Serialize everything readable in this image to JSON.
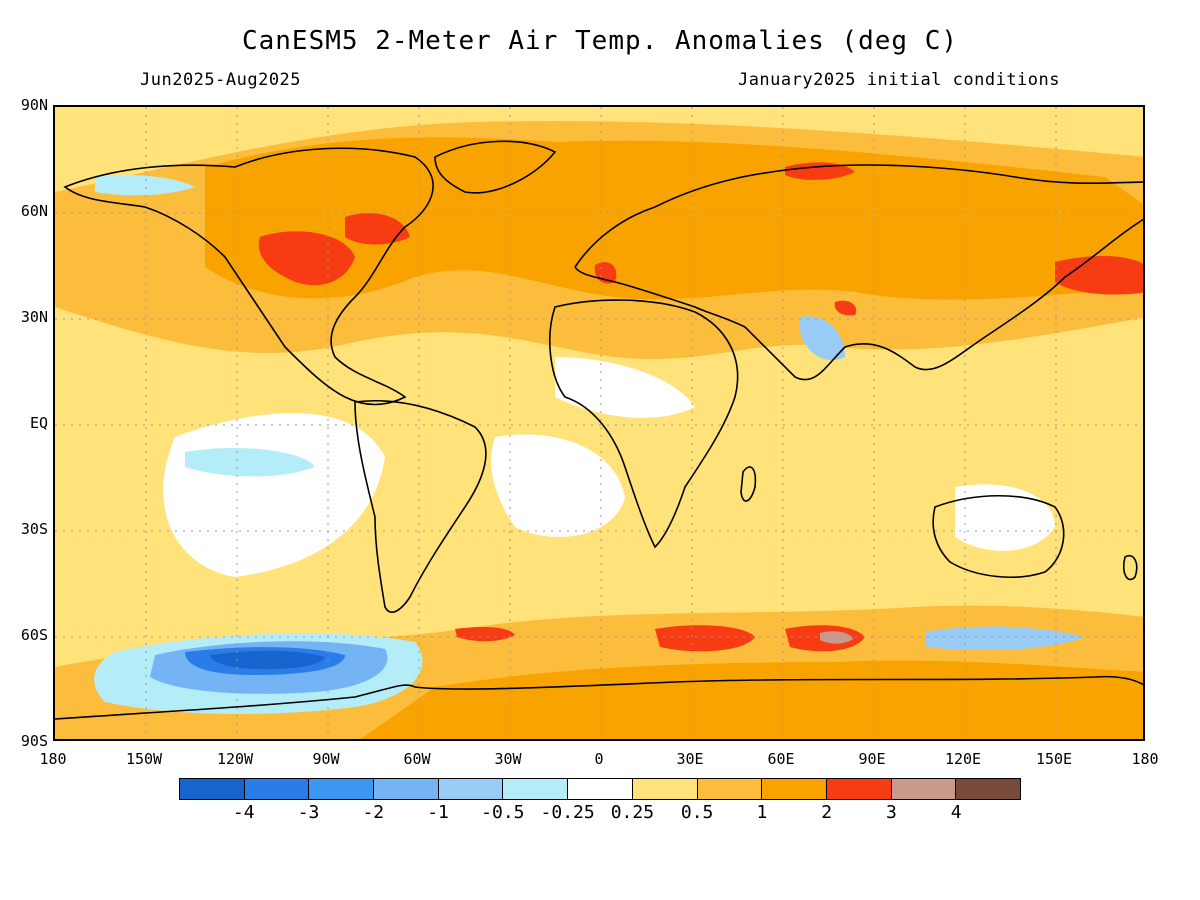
{
  "title": "CanESM5 2-Meter Air Temp. Anomalies (deg C)",
  "subtitle_left": "Jun2025-Aug2025",
  "subtitle_right": "January2025 initial conditions",
  "lat_labels": [
    "90N",
    "60N",
    "30N",
    "EQ",
    "30S",
    "60S",
    "90S"
  ],
  "lon_labels": [
    "180",
    "150W",
    "120W",
    "90W",
    "60W",
    "30W",
    "0",
    "30E",
    "60E",
    "90E",
    "120E",
    "150E",
    "180"
  ],
  "colorbar": {
    "colors": [
      "#1864cf",
      "#2a7ce8",
      "#3d96f2",
      "#74b4f4",
      "#98cbf6",
      "#b4ecf8",
      "#ffffff",
      "#ffe27a",
      "#fdbd3c",
      "#f9a300",
      "#f73c13",
      "#c99a8c",
      "#784a3c"
    ],
    "labels": [
      "-4",
      "-3",
      "-2",
      "-1",
      "-0.5",
      "-0.25",
      "0.25",
      "0.5",
      "1",
      "2",
      "3",
      "4"
    ]
  },
  "legend_colors": {
    "ocean_default": "#ffe27a",
    "warm": "#f9a300",
    "hot": "#f73c13",
    "very_hot": "#c99a8c",
    "cool_light": "#b4ecf8",
    "cool": "#74b4f4",
    "cold": "#1864cf",
    "neutral": "#ffffff"
  }
}
